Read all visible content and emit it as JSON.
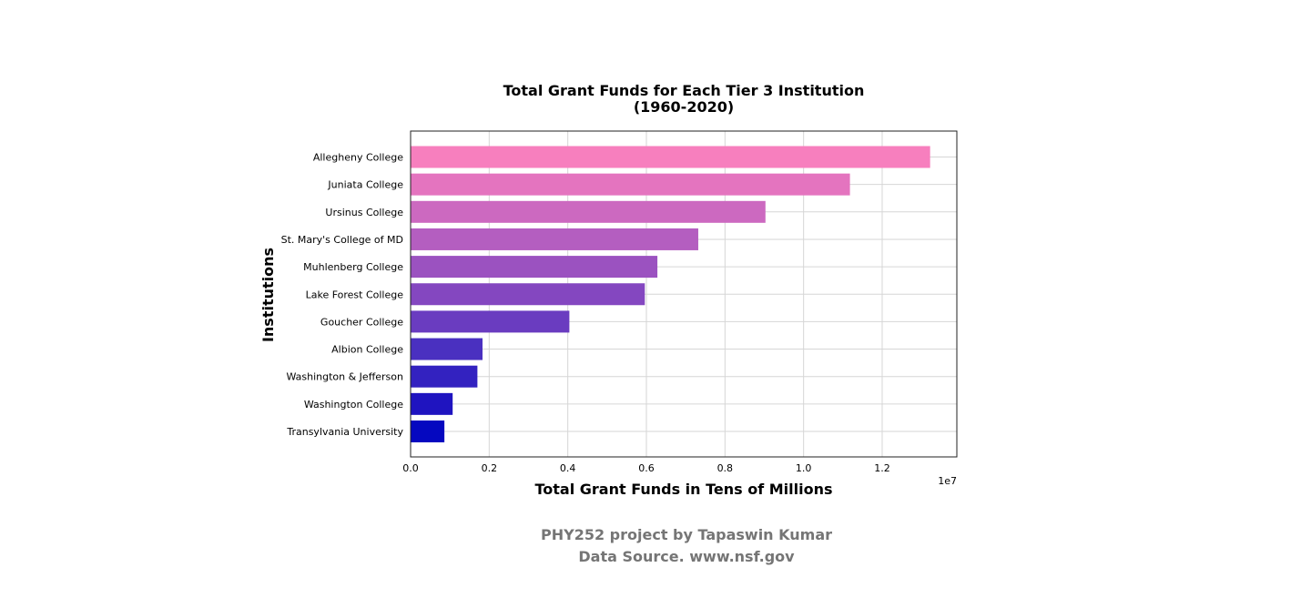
{
  "chart_data": {
    "type": "bar",
    "orientation": "horizontal",
    "title": "Total Grant Funds for Each Tier 3 Institution",
    "subtitle": "(1960-2020)",
    "xlabel": "Total Grant Funds in Tens of Millions",
    "ylabel": "Institutions",
    "x_offset_label": "1e7",
    "xlim": [
      0,
      1.39
    ],
    "x_ticks": [
      0.0,
      0.2,
      0.4,
      0.6,
      0.8,
      1.0,
      1.2
    ],
    "x_tick_labels": [
      "0.0",
      "0.2",
      "0.4",
      "0.6",
      "0.8",
      "1.0",
      "1.2"
    ],
    "grid": true,
    "categories": [
      "Allegheny College",
      "Juniata College",
      "Ursinus College",
      "St. Mary's College of MD",
      "Muhlenberg College",
      "Lake Forest College",
      "Goucher College",
      "Albion College",
      "Washington & Jefferson",
      "Washington College",
      "Transylvania University"
    ],
    "values": [
      1.322,
      1.118,
      0.903,
      0.732,
      0.628,
      0.596,
      0.404,
      0.183,
      0.17,
      0.107,
      0.086
    ],
    "colors": [
      "#f77fbe",
      "#e474bf",
      "#cc69c0",
      "#b45ec0",
      "#9b52c0",
      "#8447c0",
      "#6a3cc0",
      "#4a30c0",
      "#3322c0",
      "#1f14c0",
      "#0508c0"
    ]
  },
  "footer": {
    "line1": "PHY252 project by Tapaswin Kumar",
    "line2": "Data Source. www.nsf.gov"
  }
}
